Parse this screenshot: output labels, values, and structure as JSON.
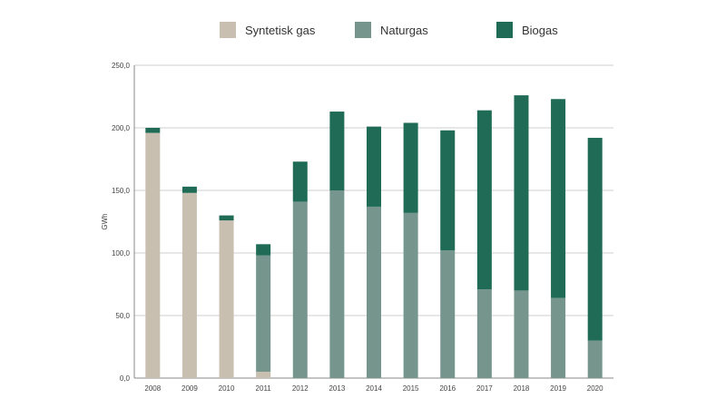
{
  "chart_data": {
    "type": "bar",
    "stacked": true,
    "title": "",
    "xlabel": "",
    "ylabel": "GWh",
    "ylim": [
      0,
      250
    ],
    "yticks": [
      "0,0",
      "50,0",
      "100,0",
      "150,0",
      "200,0",
      "250,0"
    ],
    "grid": true,
    "legend_position": "top",
    "categories": [
      "2008",
      "2009",
      "2010",
      "2011",
      "2012",
      "2013",
      "2014",
      "2015",
      "2016",
      "2017",
      "2018",
      "2019",
      "2020"
    ],
    "series": [
      {
        "name": "Syntetisk gas",
        "color": "#c9bfb0",
        "values": [
          196,
          148,
          126,
          5,
          0,
          0,
          0,
          0,
          0,
          0,
          0,
          0,
          0
        ]
      },
      {
        "name": "Naturgas",
        "color": "#76958d",
        "values": [
          0,
          0,
          0,
          93,
          141,
          150,
          137,
          132,
          102,
          71,
          70,
          64,
          30
        ]
      },
      {
        "name": "Biogas",
        "color": "#1f6b55",
        "values": [
          4,
          5,
          4,
          9,
          32,
          63,
          64,
          72,
          96,
          143,
          156,
          159,
          162
        ]
      }
    ]
  }
}
